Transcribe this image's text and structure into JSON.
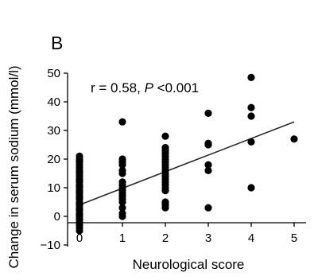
{
  "panel_label": "B",
  "chart_data": {
    "type": "scatter",
    "title": "",
    "xlabel": "Neurological score",
    "ylabel": "Change in serum sodium (mmol/l)",
    "xlim": [
      -0.3,
      5.3
    ],
    "ylim": [
      -10,
      50
    ],
    "x_ticks": [
      0,
      1,
      2,
      3,
      4,
      5
    ],
    "y_ticks": [
      -10,
      0,
      10,
      20,
      30,
      40,
      50
    ],
    "x_tick_labels": [
      "0",
      "1",
      "2",
      "3",
      "4",
      "5"
    ],
    "y_tick_labels": [
      "−10",
      "0",
      "10",
      "20",
      "30",
      "40",
      "50"
    ],
    "grid": false,
    "annotation": {
      "prefix": "r = 0.58, ",
      "p_symbol": "P",
      "suffix": " <0.001"
    },
    "trend_line": {
      "x": [
        0,
        5
      ],
      "y": [
        4,
        33
      ]
    },
    "series": [
      {
        "points": [
          [
            0,
            21
          ],
          [
            0,
            20
          ],
          [
            0,
            19.5
          ],
          [
            0,
            19
          ],
          [
            0,
            18
          ],
          [
            0,
            17
          ],
          [
            0,
            16
          ],
          [
            0,
            15.5
          ],
          [
            0,
            15
          ],
          [
            0,
            14
          ],
          [
            0,
            13
          ],
          [
            0,
            12.5
          ],
          [
            0,
            12
          ],
          [
            0,
            11
          ],
          [
            0,
            10.5
          ],
          [
            0,
            10
          ],
          [
            0,
            9
          ],
          [
            0,
            8.5
          ],
          [
            0,
            8
          ],
          [
            0,
            7
          ],
          [
            0,
            6.5
          ],
          [
            0,
            6
          ],
          [
            0,
            5
          ],
          [
            0,
            4.5
          ],
          [
            0,
            4
          ],
          [
            0,
            3
          ],
          [
            0,
            2.5
          ],
          [
            0,
            2
          ],
          [
            0,
            1
          ],
          [
            0,
            0.5
          ],
          [
            0,
            0
          ],
          [
            0,
            -1
          ],
          [
            0,
            -2
          ],
          [
            0,
            -3
          ],
          [
            0,
            -4
          ],
          [
            0,
            -5
          ],
          [
            1,
            33
          ],
          [
            1,
            20
          ],
          [
            1,
            19
          ],
          [
            1,
            18
          ],
          [
            1,
            16
          ],
          [
            1,
            15
          ],
          [
            1,
            12
          ],
          [
            1,
            11
          ],
          [
            1,
            10
          ],
          [
            1,
            9
          ],
          [
            1,
            8
          ],
          [
            1,
            7
          ],
          [
            1,
            6
          ],
          [
            1,
            5
          ],
          [
            1,
            3
          ],
          [
            1,
            1
          ],
          [
            1,
            0
          ],
          [
            2,
            28
          ],
          [
            2,
            24
          ],
          [
            2,
            23
          ],
          [
            2,
            22
          ],
          [
            2,
            21
          ],
          [
            2,
            20
          ],
          [
            2,
            19
          ],
          [
            2,
            18
          ],
          [
            2,
            17
          ],
          [
            2,
            16
          ],
          [
            2,
            15
          ],
          [
            2,
            14
          ],
          [
            2,
            13
          ],
          [
            2,
            12
          ],
          [
            2,
            11
          ],
          [
            2,
            10
          ],
          [
            2,
            9
          ],
          [
            2,
            5
          ],
          [
            2,
            4
          ],
          [
            2,
            3
          ],
          [
            3,
            36
          ],
          [
            3,
            25.5
          ],
          [
            3,
            25
          ],
          [
            3,
            18
          ],
          [
            3,
            16
          ],
          [
            3,
            3
          ],
          [
            4,
            48.5
          ],
          [
            4,
            38
          ],
          [
            4,
            35
          ],
          [
            4,
            26
          ],
          [
            4,
            10
          ],
          [
            5,
            27
          ]
        ]
      }
    ]
  }
}
